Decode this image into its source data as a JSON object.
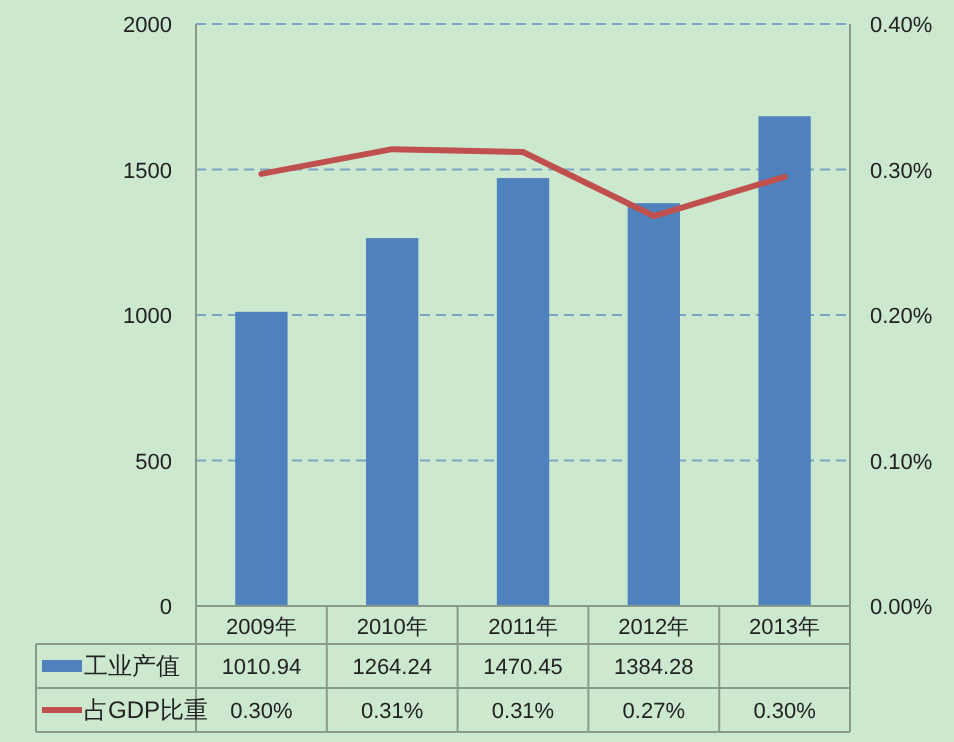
{
  "chart_data": {
    "type": "bar",
    "categories": [
      "2009年",
      "2010年",
      "2011年",
      "2012年",
      "2013年"
    ],
    "series": [
      {
        "name": "工业产值",
        "color": "#4f81bd",
        "values": [
          1010.94,
          1264.24,
          1470.45,
          1384.28,
          1683
        ],
        "value_labels": [
          "1010.94",
          "1264.24",
          "1470.45",
          "1384.28",
          null
        ]
      },
      {
        "name": "占GDP比重",
        "type": "line",
        "axis": "y2",
        "color": "#c0504d",
        "values": [
          0.297,
          0.314,
          0.312,
          0.268,
          0.295
        ],
        "value_labels": [
          "0.30%",
          "0.31%",
          "0.31%",
          "0.27%",
          "0.30%"
        ]
      }
    ],
    "ylim": [
      0,
      2000
    ],
    "yticks": [
      0,
      500,
      1000,
      1500,
      2000
    ],
    "y2lim": [
      0,
      0.4
    ],
    "y2ticks": [
      {
        "value": 0,
        "label": "0.00%"
      },
      {
        "value": 0.1,
        "label": "0.10%"
      },
      {
        "value": 0.2,
        "label": "0.20%"
      },
      {
        "value": 0.3,
        "label": "0.30%"
      },
      {
        "value": 0.4,
        "label": "0.40%"
      }
    ],
    "grid": "y",
    "legend": "bottom left"
  }
}
